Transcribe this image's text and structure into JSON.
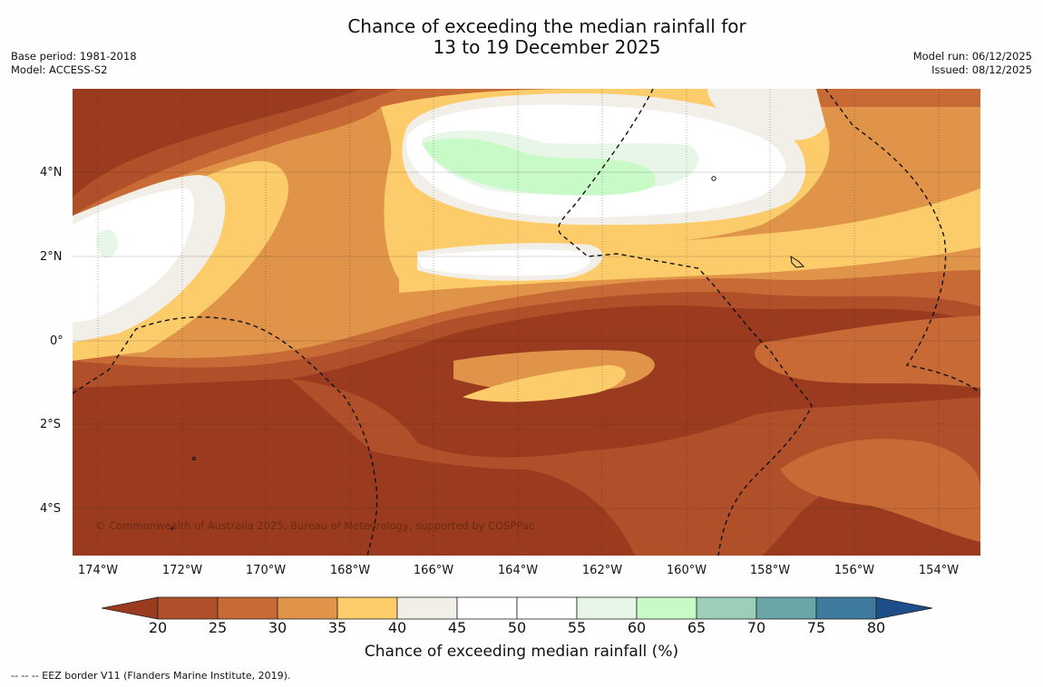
{
  "title_line1": "Chance of exceeding the median rainfall for",
  "title_line2": "13 to 19 December 2025",
  "meta_left": {
    "base_period": "Base period: 1981-2018",
    "model": "Model: ACCESS-S2"
  },
  "meta_right": {
    "model_run": "Model run: 06/12/2025",
    "issued": "Issued: 08/12/2025"
  },
  "lat_labels": [
    "4°N",
    "2°N",
    "0°",
    "2°S",
    "4°S"
  ],
  "lon_labels": [
    "174°W",
    "172°W",
    "170°W",
    "168°W",
    "166°W",
    "164°W",
    "162°W",
    "160°W",
    "158°W",
    "156°W",
    "154°W"
  ],
  "copyright": "© Commonwealth of Australia 2025, Bureau of Meteorology, supported by COSPPac",
  "colorbar": {
    "title": "Chance of exceeding median rainfall (%)",
    "ticks": [
      "20",
      "25",
      "30",
      "35",
      "40",
      "45",
      "50",
      "55",
      "60",
      "65",
      "70",
      "75",
      "80"
    ],
    "colors": [
      "#9a3a1e",
      "#b0502a",
      "#c86a36",
      "#e0944a",
      "#fdcc6a",
      "#f2eee8",
      "#ffffff",
      "#ffffff",
      "#e8f6e8",
      "#c8fac8",
      "#9ccfb8",
      "#6aa6a8",
      "#3e7a9e",
      "#1e4e8a"
    ]
  },
  "footnote": "--  --  -- EEZ border V11 (Flanders Marine Institute, 2019)."
}
